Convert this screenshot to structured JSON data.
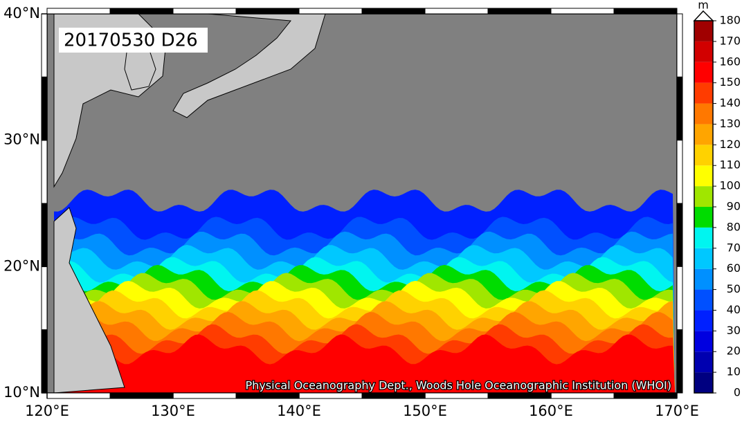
{
  "header": {
    "title": "20170530 D26"
  },
  "map": {
    "lon_ticks": [
      {
        "value": 120,
        "label": "120°E"
      },
      {
        "value": 130,
        "label": "130°E"
      },
      {
        "value": 140,
        "label": "140°E"
      },
      {
        "value": 150,
        "label": "150°E"
      },
      {
        "value": 160,
        "label": "160°E"
      },
      {
        "value": 170,
        "label": "170°E"
      }
    ],
    "lat_ticks": [
      {
        "value": 10,
        "label": "10°N"
      },
      {
        "value": 20,
        "label": "20°N"
      },
      {
        "value": 30,
        "label": "30°N"
      },
      {
        "value": 40,
        "label": "40°N"
      }
    ],
    "lon_range": [
      120,
      170
    ],
    "lat_range": [
      10,
      40
    ],
    "credit": "Physical Oceanography Dept., Woods Hole Oceanographic Institution (WHOI)"
  },
  "colorbar": {
    "unit": "m",
    "range": [
      0,
      180
    ],
    "ticks": [
      0,
      10,
      20,
      30,
      40,
      50,
      60,
      70,
      80,
      90,
      100,
      110,
      120,
      130,
      140,
      150,
      160,
      170,
      180
    ],
    "colors": [
      "#000080",
      "#0000b0",
      "#0000e0",
      "#0020ff",
      "#0050ff",
      "#0090ff",
      "#00c8ff",
      "#00f5f0",
      "#00dc00",
      "#a0e600",
      "#ffff00",
      "#ffd200",
      "#ffa500",
      "#ff7800",
      "#ff3c00",
      "#ff0000",
      "#d20000",
      "#a00000"
    ]
  }
}
